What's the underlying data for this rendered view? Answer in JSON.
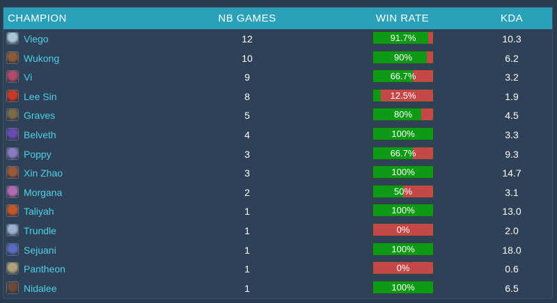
{
  "header": {
    "champion": "CHAMPION",
    "games": "NB GAMES",
    "win_rate": "WIN RATE",
    "kda": "KDA"
  },
  "colors": {
    "win": "#0e9a14",
    "loss": "#c44848",
    "name": "#4fd0ea",
    "header_bg": "#2aa1b9"
  },
  "rows": [
    {
      "name": "Viego",
      "games": "12",
      "win_rate_label": "91.7%",
      "win_rate": 91.7,
      "kda": "10.3",
      "avatar_color": "#a9c7d6"
    },
    {
      "name": "Wukong",
      "games": "10",
      "win_rate_label": "90%",
      "win_rate": 90,
      "kda": "6.2",
      "avatar_color": "#8a5a3a"
    },
    {
      "name": "Vi",
      "games": "9",
      "win_rate_label": "66.7%",
      "win_rate": 66.7,
      "kda": "3.2",
      "avatar_color": "#b04a6a"
    },
    {
      "name": "Lee Sin",
      "games": "8",
      "win_rate_label": "12.5%",
      "win_rate": 12.5,
      "kda": "1.9",
      "avatar_color": "#c73a2a"
    },
    {
      "name": "Graves",
      "games": "5",
      "win_rate_label": "80%",
      "win_rate": 80,
      "kda": "4.5",
      "avatar_color": "#7a6a4a"
    },
    {
      "name": "Belveth",
      "games": "4",
      "win_rate_label": "100%",
      "win_rate": 100,
      "kda": "3.3",
      "avatar_color": "#6a4ab0"
    },
    {
      "name": "Poppy",
      "games": "3",
      "win_rate_label": "66.7%",
      "win_rate": 66.7,
      "kda": "9.3",
      "avatar_color": "#8a7ac0"
    },
    {
      "name": "Xin Zhao",
      "games": "3",
      "win_rate_label": "100%",
      "win_rate": 100,
      "kda": "14.7",
      "avatar_color": "#9a5a3a"
    },
    {
      "name": "Morgana",
      "games": "2",
      "win_rate_label": "50%",
      "win_rate": 50,
      "kda": "3.1",
      "avatar_color": "#b06ab0"
    },
    {
      "name": "Taliyah",
      "games": "1",
      "win_rate_label": "100%",
      "win_rate": 100,
      "kda": "13.0",
      "avatar_color": "#c0582a"
    },
    {
      "name": "Trundle",
      "games": "1",
      "win_rate_label": "0%",
      "win_rate": 0,
      "kda": "2.0",
      "avatar_color": "#9ab0d0"
    },
    {
      "name": "Sejuani",
      "games": "1",
      "win_rate_label": "100%",
      "win_rate": 100,
      "kda": "18.0",
      "avatar_color": "#5a6ac0"
    },
    {
      "name": "Pantheon",
      "games": "1",
      "win_rate_label": "0%",
      "win_rate": 0,
      "kda": "0.6",
      "avatar_color": "#b0a07a"
    },
    {
      "name": "Nidalee",
      "games": "1",
      "win_rate_label": "100%",
      "win_rate": 100,
      "kda": "6.5",
      "avatar_color": "#6a4a3a"
    }
  ]
}
